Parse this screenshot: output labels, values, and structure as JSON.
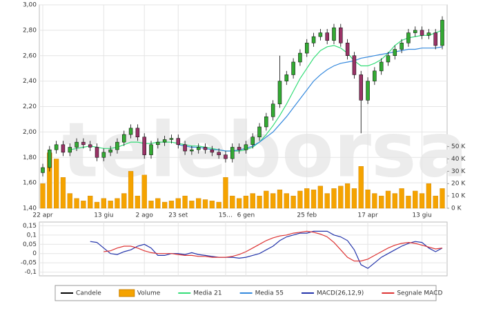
{
  "chart_data": [
    {
      "type": "candlestick",
      "watermark": "teleborsa",
      "categories": [
        "22 apr",
        null,
        null,
        null,
        null,
        null,
        null,
        null,
        null,
        "13 giu",
        null,
        null,
        null,
        null,
        null,
        "2 ago",
        null,
        null,
        null,
        null,
        "23 set",
        null,
        null,
        null,
        null,
        null,
        null,
        "15…",
        null,
        null,
        "6 gen",
        null,
        null,
        null,
        null,
        null,
        null,
        null,
        null,
        "25 feb",
        null,
        null,
        null,
        null,
        null,
        null,
        null,
        null,
        "17 apr",
        null,
        null,
        null,
        null,
        null,
        null,
        null,
        "13 giu",
        null,
        null,
        null
      ],
      "open": [
        1.68,
        1.72,
        1.86,
        1.9,
        1.84,
        1.88,
        1.92,
        1.9,
        1.88,
        1.8,
        1.84,
        1.86,
        1.92,
        1.98,
        2.03,
        1.96,
        1.82,
        1.9,
        1.92,
        1.94,
        1.95,
        1.9,
        1.85,
        1.86,
        1.88,
        1.86,
        1.84,
        1.82,
        1.79,
        1.88,
        1.86,
        1.9,
        1.96,
        2.04,
        2.12,
        2.22,
        2.4,
        2.45,
        2.55,
        2.62,
        2.7,
        2.75,
        2.78,
        2.72,
        2.82,
        2.7,
        2.6,
        2.45,
        2.25,
        2.4,
        2.48,
        2.55,
        2.6,
        2.65,
        2.7,
        2.78,
        2.8,
        2.76,
        2.78,
        2.68
      ],
      "high": [
        1.75,
        1.89,
        1.93,
        1.93,
        1.91,
        1.95,
        1.95,
        1.93,
        1.91,
        1.87,
        1.89,
        1.95,
        2.01,
        2.06,
        2.06,
        1.99,
        1.93,
        1.95,
        1.97,
        1.98,
        1.98,
        1.93,
        1.89,
        1.91,
        1.91,
        1.89,
        1.87,
        1.85,
        1.91,
        1.91,
        1.93,
        1.99,
        2.07,
        2.15,
        2.25,
        2.6,
        2.48,
        2.58,
        2.65,
        2.73,
        2.78,
        2.81,
        2.81,
        2.85,
        2.85,
        2.73,
        2.63,
        2.48,
        2.43,
        2.51,
        2.58,
        2.63,
        2.68,
        2.73,
        2.81,
        2.83,
        2.83,
        2.81,
        2.81,
        2.91
      ],
      "low": [
        1.65,
        1.69,
        1.83,
        1.81,
        1.81,
        1.85,
        1.87,
        1.85,
        1.77,
        1.77,
        1.81,
        1.83,
        1.89,
        1.95,
        1.93,
        1.79,
        1.79,
        1.87,
        1.89,
        1.91,
        1.87,
        1.82,
        1.82,
        1.83,
        1.83,
        1.81,
        1.79,
        1.76,
        1.76,
        1.83,
        1.83,
        1.87,
        1.93,
        2.01,
        2.09,
        2.19,
        2.37,
        2.42,
        2.52,
        2.59,
        2.67,
        2.72,
        2.69,
        2.69,
        2.67,
        2.57,
        2.42,
        1.99,
        2.22,
        2.37,
        2.45,
        2.52,
        2.57,
        2.62,
        2.67,
        2.75,
        2.73,
        2.73,
        2.65,
        2.65
      ],
      "close": [
        1.72,
        1.86,
        1.9,
        1.84,
        1.88,
        1.92,
        1.9,
        1.88,
        1.8,
        1.84,
        1.86,
        1.92,
        1.98,
        2.03,
        1.96,
        1.82,
        1.9,
        1.92,
        1.94,
        1.95,
        1.9,
        1.85,
        1.86,
        1.88,
        1.86,
        1.84,
        1.82,
        1.79,
        1.88,
        1.86,
        1.9,
        1.96,
        2.04,
        2.12,
        2.22,
        2.4,
        2.45,
        2.55,
        2.62,
        2.7,
        2.75,
        2.78,
        2.72,
        2.82,
        2.7,
        2.6,
        2.45,
        2.25,
        2.4,
        2.48,
        2.55,
        2.6,
        2.65,
        2.7,
        2.78,
        2.8,
        2.76,
        2.78,
        2.68,
        2.88
      ],
      "name": "Candele",
      "color": "#000000",
      "up_color": "#33aa33",
      "down_color": "#993366",
      "series": [
        {
          "name": "Volume",
          "color": "#f5a300",
          "axis": "y2",
          "kind": "bar",
          "values": [
            20,
            45,
            40,
            25,
            12,
            8,
            6,
            10,
            5,
            8,
            6,
            8,
            12,
            30,
            10,
            27,
            6,
            8,
            5,
            6,
            8,
            10,
            6,
            8,
            7,
            6,
            5,
            25,
            10,
            8,
            10,
            12,
            10,
            14,
            12,
            15,
            12,
            10,
            14,
            16,
            15,
            18,
            12,
            16,
            18,
            20,
            16,
            34,
            15,
            12,
            10,
            14,
            12,
            16,
            10,
            14,
            12,
            20,
            10,
            16
          ]
        },
        {
          "name": "Media 21",
          "color": "#33dd77",
          "kind": "line",
          "values": [
            null,
            null,
            null,
            null,
            1.86,
            1.87,
            1.88,
            1.89,
            1.88,
            1.87,
            1.87,
            1.88,
            1.9,
            1.92,
            1.92,
            1.91,
            1.91,
            1.92,
            1.92,
            1.92,
            1.91,
            1.9,
            1.89,
            1.89,
            1.88,
            1.87,
            1.86,
            1.85,
            1.85,
            1.85,
            1.86,
            1.88,
            1.92,
            1.98,
            2.05,
            2.13,
            2.22,
            2.32,
            2.42,
            2.5,
            2.58,
            2.64,
            2.67,
            2.68,
            2.66,
            2.62,
            2.56,
            2.52,
            2.52,
            2.54,
            2.57,
            2.62,
            2.68,
            2.72,
            2.74,
            2.75,
            2.76,
            2.76,
            2.78,
            2.8
          ]
        },
        {
          "name": "Media 55",
          "color": "#3388dd",
          "kind": "line",
          "values": [
            null,
            null,
            null,
            null,
            null,
            null,
            null,
            null,
            null,
            null,
            null,
            null,
            null,
            null,
            null,
            null,
            null,
            null,
            null,
            null,
            1.9,
            1.89,
            1.88,
            1.88,
            1.87,
            1.86,
            1.86,
            1.85,
            1.85,
            1.86,
            1.87,
            1.89,
            1.92,
            1.96,
            2.0,
            2.06,
            2.12,
            2.19,
            2.26,
            2.33,
            2.4,
            2.45,
            2.49,
            2.52,
            2.54,
            2.55,
            2.56,
            2.58,
            2.59,
            2.6,
            2.61,
            2.62,
            2.63,
            2.64,
            2.65,
            2.65,
            2.66,
            2.66,
            2.66,
            2.67
          ]
        }
      ],
      "ylim": [
        1.4,
        3.0
      ],
      "yticks": [
        {
          "value": 1.4,
          "label": "1,40"
        },
        {
          "value": 1.6,
          "label": "1,60"
        },
        {
          "value": 1.8,
          "label": "1,80"
        },
        {
          "value": 2.0,
          "label": "2,00"
        },
        {
          "value": 2.2,
          "label": "2,20"
        },
        {
          "value": 2.4,
          "label": "2,40"
        },
        {
          "value": 2.6,
          "label": "2,60"
        },
        {
          "value": 2.8,
          "label": "2,80"
        },
        {
          "value": 3.0,
          "label": "3,00"
        }
      ],
      "y2lim": [
        0,
        165
      ],
      "y2ticks": [
        {
          "value": 0,
          "label": "0 K"
        },
        {
          "value": 10,
          "label": "10 K"
        },
        {
          "value": 20,
          "label": "20 K"
        },
        {
          "value": 30,
          "label": "30 K"
        },
        {
          "value": 40,
          "label": "40 K"
        },
        {
          "value": 50,
          "label": "50 K"
        }
      ],
      "grid": true
    },
    {
      "type": "line",
      "series": [
        {
          "name": "MACD(26,12,9)",
          "color": "#2233aa",
          "values": [
            null,
            null,
            null,
            null,
            null,
            null,
            null,
            0.065,
            0.06,
            0.03,
            0.0,
            -0.005,
            0.01,
            0.02,
            0.04,
            0.05,
            0.03,
            -0.01,
            -0.01,
            0.0,
            0.0,
            -0.005,
            0.005,
            -0.005,
            -0.01,
            -0.015,
            -0.02,
            -0.02,
            -0.02,
            -0.025,
            -0.02,
            -0.01,
            0.0,
            0.02,
            0.04,
            0.07,
            0.09,
            0.1,
            0.11,
            0.11,
            0.12,
            0.12,
            0.12,
            0.1,
            0.09,
            0.07,
            0.02,
            -0.06,
            -0.08,
            -0.05,
            -0.02,
            0.0,
            0.02,
            0.04,
            0.055,
            0.065,
            0.06,
            0.03,
            0.01,
            0.03
          ]
        },
        {
          "name": "Segnale MACD",
          "color": "#dd3333",
          "values": [
            null,
            null,
            null,
            null,
            null,
            null,
            null,
            null,
            null,
            0.01,
            0.015,
            0.03,
            0.04,
            0.04,
            0.03,
            0.015,
            0.005,
            0.0,
            0.0,
            0.0,
            -0.005,
            -0.01,
            -0.01,
            -0.015,
            -0.015,
            -0.02,
            -0.02,
            -0.02,
            -0.015,
            -0.005,
            0.01,
            0.03,
            0.05,
            0.07,
            0.085,
            0.095,
            0.1,
            0.11,
            0.115,
            0.12,
            0.115,
            0.105,
            0.09,
            0.06,
            0.02,
            -0.02,
            -0.04,
            -0.04,
            -0.03,
            -0.01,
            0.01,
            0.03,
            0.045,
            0.055,
            0.06,
            0.055,
            0.045,
            0.035,
            0.025,
            0.03
          ]
        }
      ],
      "ylim": [
        -0.12,
        0.17
      ],
      "yticks": [
        {
          "value": -0.1,
          "label": "-0,1"
        },
        {
          "value": -0.05,
          "label": "-0,05"
        },
        0,
        {
          "value": 0.05,
          "label": "0,05"
        },
        {
          "value": 0.1,
          "label": "0,1"
        },
        {
          "value": 0.15,
          "label": "0,15"
        }
      ],
      "grid": true
    }
  ]
}
